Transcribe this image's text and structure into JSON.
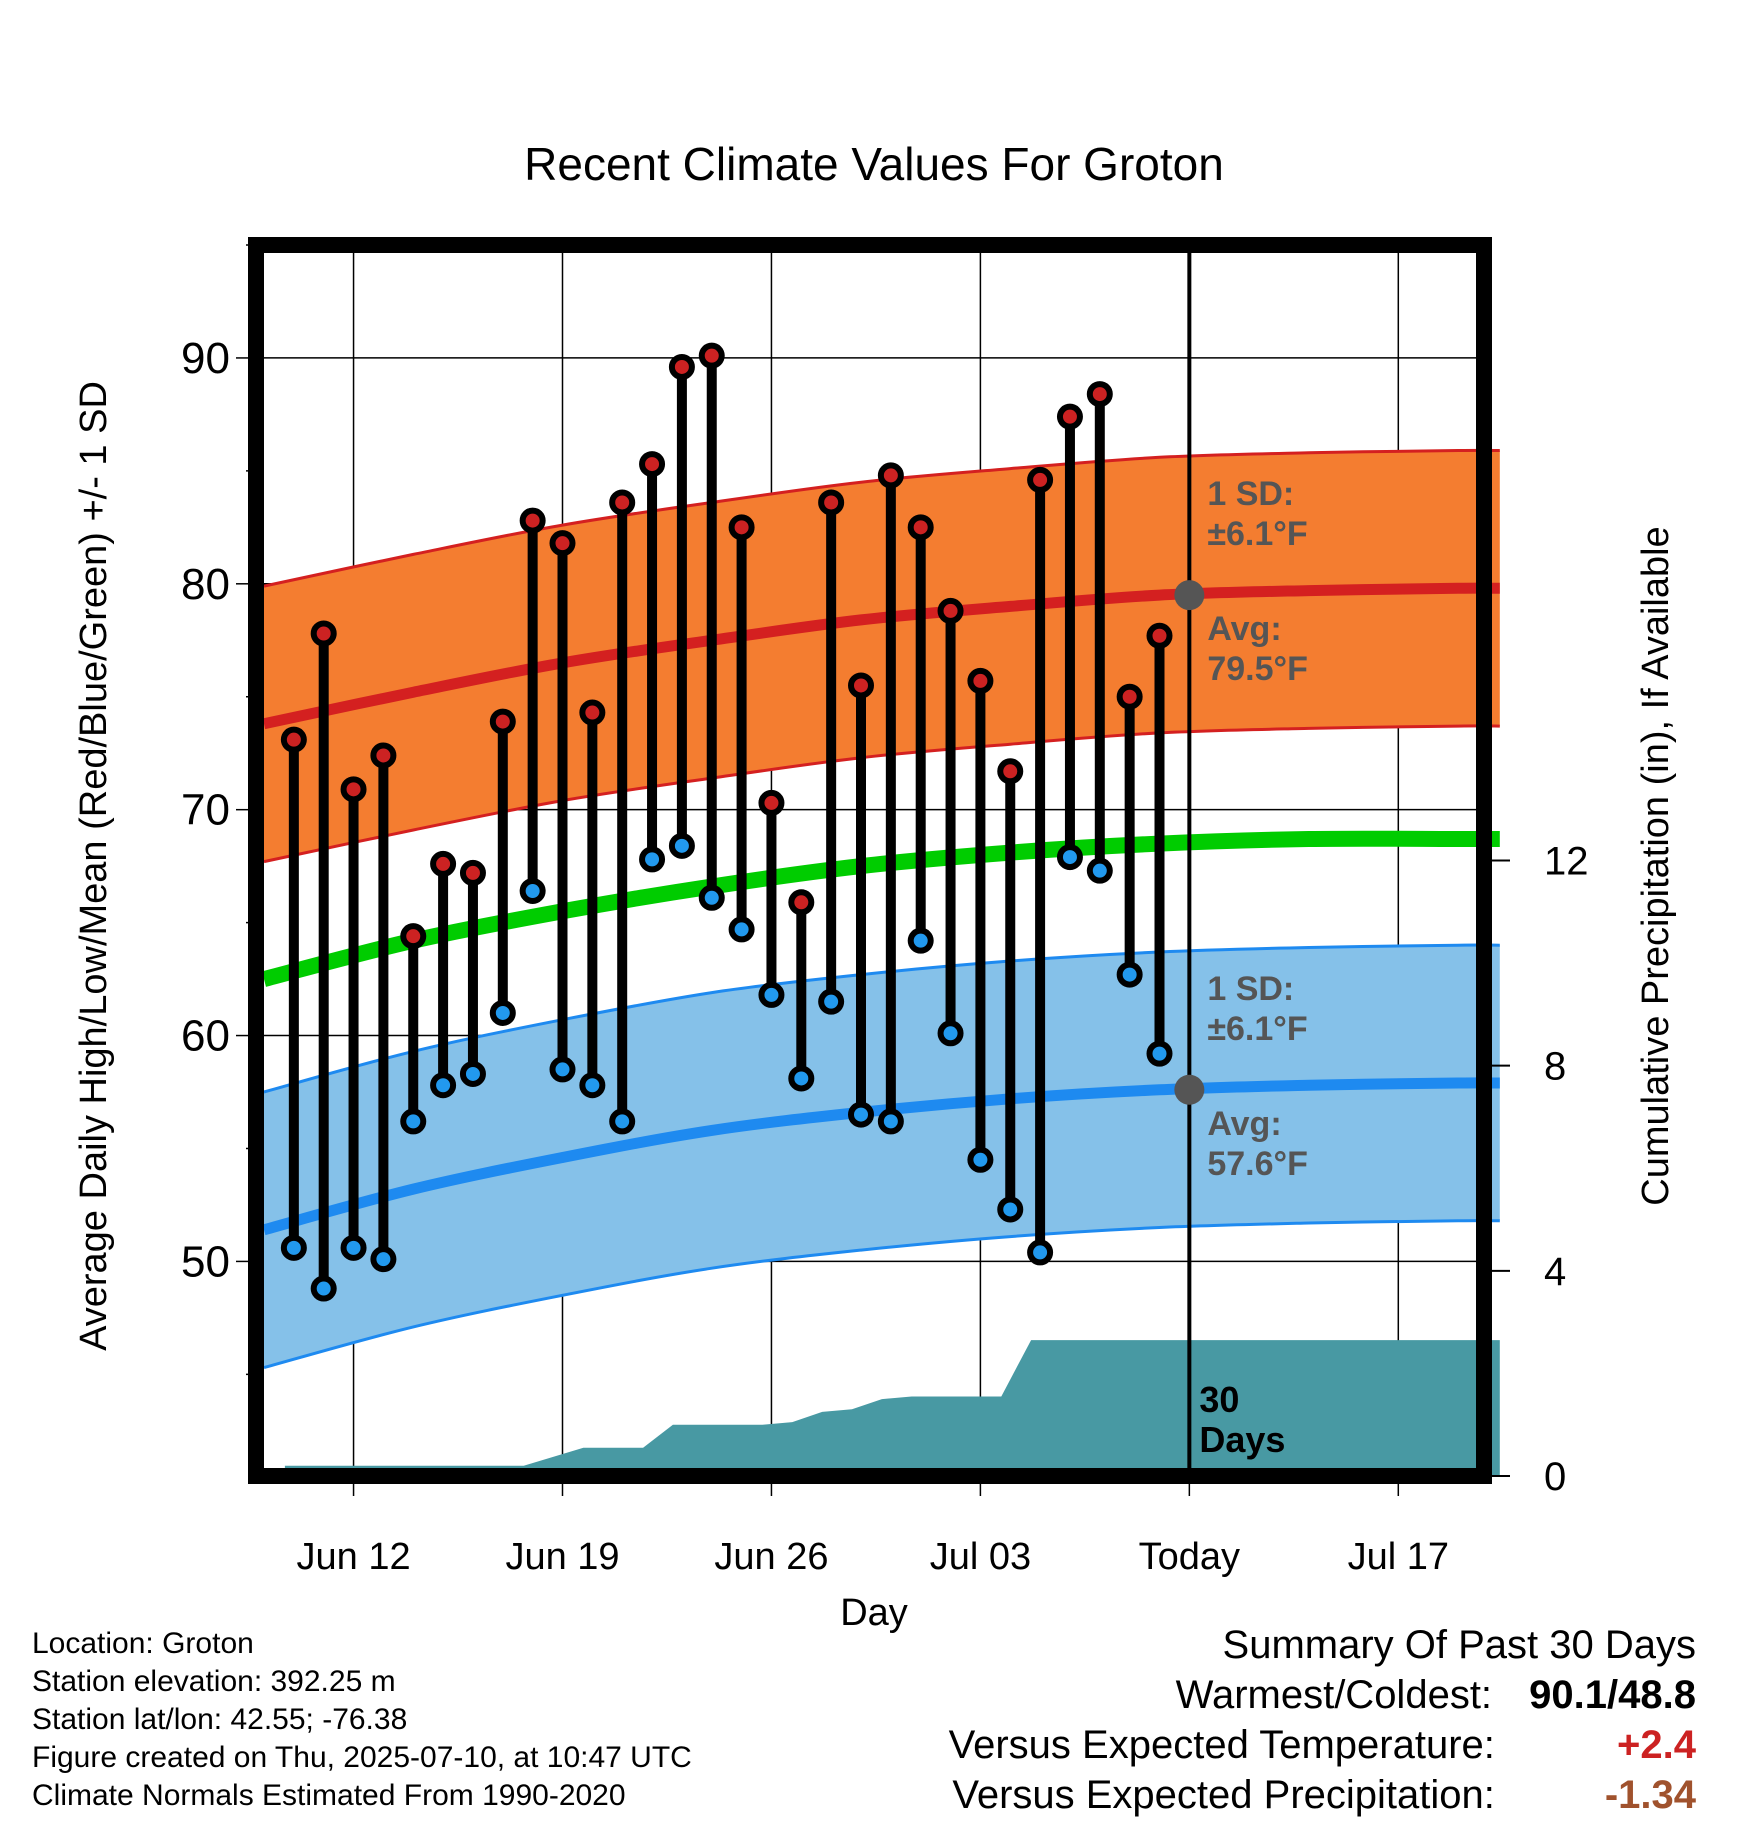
{
  "chart_data": {
    "type": "line",
    "title": "Recent Climate Values For Groton",
    "xlabel": "Day",
    "ylabel": "Average Daily High/Low/Mean (Red/Blue/Green) +/- 1 SD",
    "y2label": "Cumulative Precipitation (in), If Available",
    "ylim": [
      40.5,
      95
    ],
    "y2lim": [
      0,
      24
    ],
    "x_ticks": [
      "Jun 12",
      "Jun 19",
      "Jun 26",
      "Jul 03",
      "Today",
      "Jul 17"
    ],
    "y_ticks": [
      50,
      60,
      70,
      80,
      90
    ],
    "y2_ticks": [
      0,
      4,
      8,
      12
    ],
    "start_date": "Jun 09",
    "days": [
      "Jun 10",
      "Jun 11",
      "Jun 12",
      "Jun 13",
      "Jun 14",
      "Jun 15",
      "Jun 16",
      "Jun 17",
      "Jun 18",
      "Jun 19",
      "Jun 20",
      "Jun 21",
      "Jun 22",
      "Jun 23",
      "Jun 24",
      "Jun 25",
      "Jun 26",
      "Jun 27",
      "Jun 28",
      "Jun 29",
      "Jun 30",
      "Jul 01",
      "Jul 02",
      "Jul 03",
      "Jul 04",
      "Jul 05",
      "Jul 06",
      "Jul 07",
      "Jul 08",
      "Jul 09"
    ],
    "highs": [
      73.1,
      77.8,
      70.9,
      72.4,
      64.4,
      67.6,
      67.2,
      73.9,
      82.8,
      81.8,
      74.3,
      83.6,
      85.3,
      89.6,
      90.1,
      82.5,
      70.3,
      65.9,
      83.6,
      75.5,
      84.8,
      82.5,
      78.8,
      75.7,
      71.7,
      84.6,
      87.4,
      88.4,
      75.0,
      77.7
    ],
    "lows": [
      50.6,
      48.8,
      50.6,
      50.1,
      56.2,
      57.8,
      58.3,
      61.0,
      66.4,
      58.5,
      57.8,
      56.2,
      67.8,
      68.4,
      66.1,
      64.7,
      61.8,
      58.1,
      61.5,
      56.5,
      56.2,
      64.2,
      60.1,
      54.5,
      52.3,
      50.4,
      67.9,
      67.3,
      62.7,
      59.2
    ],
    "normals": {
      "x": [
        0,
        5,
        10,
        15,
        20,
        25,
        30,
        35,
        40,
        41.4
      ],
      "avg_high": [
        73.8,
        75.2,
        76.5,
        77.5,
        78.4,
        79.0,
        79.5,
        79.7,
        79.8,
        79.8
      ],
      "avg_low": [
        51.4,
        53.2,
        54.6,
        55.8,
        56.6,
        57.2,
        57.6,
        57.8,
        57.9,
        57.9
      ],
      "mean": [
        62.5,
        64.2,
        65.5,
        66.6,
        67.5,
        68.1,
        68.5,
        68.7,
        68.7,
        68.7
      ],
      "sd": 6.1
    },
    "precip": {
      "x": [
        0.7,
        8.7,
        10.7,
        12.7,
        13.7,
        16.7,
        17.7,
        18.7,
        19.7,
        20.7,
        21.7,
        24.7,
        25.7,
        26.7,
        27.7
      ],
      "cum_in": [
        0.2,
        0.2,
        0.55,
        0.55,
        1.0,
        1.0,
        1.05,
        1.25,
        1.3,
        1.5,
        1.55,
        1.55,
        2.65,
        2.65,
        2.65
      ]
    },
    "annotations": {
      "high_sd": "1 SD:",
      "high_sd_val": "±6.1°F",
      "high_avg": "Avg:",
      "high_avg_val": "79.5°F",
      "low_sd": "1 SD:",
      "low_sd_val": "±6.1°F",
      "low_avg": "Avg:",
      "low_avg_val": "57.6°F",
      "period_num": "30",
      "period_word": "Days"
    },
    "colors": {
      "high_band": "#f47d30",
      "high_line": "#d42020",
      "low_band": "#85c1e9",
      "low_line": "#1e8af0",
      "mean_line": "#00cc00",
      "precip_fill": "#4899a3",
      "high_dot": "#cc2222",
      "low_dot": "#2299ee",
      "annotation_text": "#555555"
    }
  },
  "info": {
    "location": "Location: Groton",
    "elevation": "Station elevation: 392.25 m",
    "latlon": "Station lat/lon: 42.55; -76.38",
    "created": "Figure created on Thu, 2025-07-10, at 10:47 UTC",
    "normals": "Climate Normals Estimated From 1990-2020"
  },
  "summary": {
    "heading": "Summary Of Past 30 Days",
    "warm_cold_label": "Warmest/Coldest:",
    "warmest": "90.1",
    "coldest": "/48.8",
    "temp_label": "Versus Expected Temperature:",
    "temp_value": "+2.4",
    "precip_label": "Versus Expected Precipitation:",
    "precip_value": "-1.34",
    "temp_color": "#cc2222",
    "precip_color": "#a0522d"
  }
}
